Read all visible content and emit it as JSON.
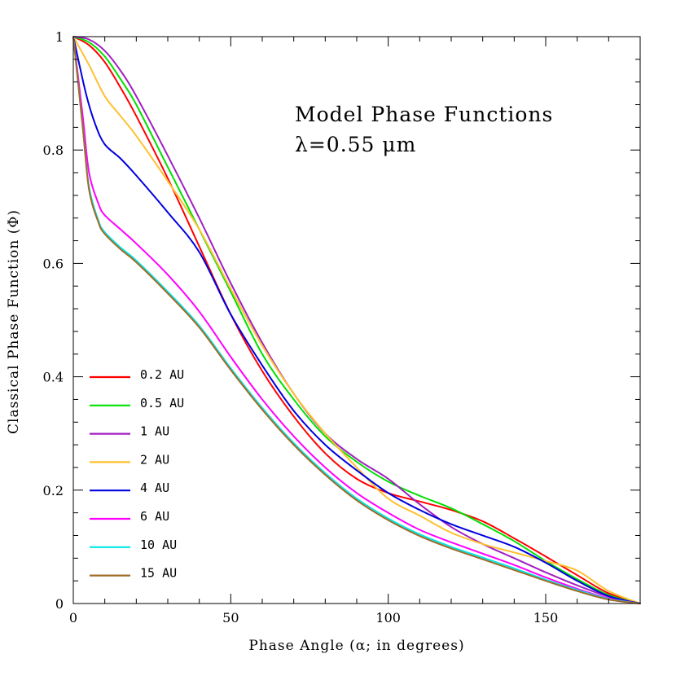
{
  "chart_data": {
    "type": "line",
    "title_lines": [
      "Model Phase Functions",
      "λ=0.55 μm"
    ],
    "xlabel": "Phase Angle (α; in degrees)",
    "ylabel": "Classical Phase Function (Φ)",
    "xlim": [
      0,
      180
    ],
    "ylim": [
      0,
      1
    ],
    "xticks": [
      0,
      50,
      100,
      150
    ],
    "xtick_labels": [
      "0",
      "50",
      "100",
      "150"
    ],
    "yticks": [
      0,
      0.2,
      0.4,
      0.6,
      0.8,
      1
    ],
    "ytick_labels": [
      "0",
      "0.2",
      "0.4",
      "0.6",
      "0.8",
      "1"
    ],
    "grid": false,
    "legend_position": "bottom-left",
    "series": [
      {
        "name": "0.2 AU",
        "color": "#ff0000",
        "points": [
          [
            0,
            1
          ],
          [
            5,
            0.985
          ],
          [
            10,
            0.955
          ],
          [
            15,
            0.91
          ],
          [
            20,
            0.86
          ],
          [
            30,
            0.75
          ],
          [
            40,
            0.63
          ],
          [
            50,
            0.51
          ],
          [
            60,
            0.41
          ],
          [
            70,
            0.33
          ],
          [
            80,
            0.265
          ],
          [
            90,
            0.22
          ],
          [
            100,
            0.195
          ],
          [
            110,
            0.18
          ],
          [
            120,
            0.165
          ],
          [
            130,
            0.145
          ],
          [
            140,
            0.115
          ],
          [
            150,
            0.083
          ],
          [
            160,
            0.05
          ],
          [
            170,
            0.018
          ],
          [
            180,
            0
          ]
        ]
      },
      {
        "name": "0.5 AU",
        "color": "#00e000",
        "points": [
          [
            0,
            1
          ],
          [
            5,
            0.99
          ],
          [
            10,
            0.965
          ],
          [
            15,
            0.925
          ],
          [
            20,
            0.88
          ],
          [
            30,
            0.77
          ],
          [
            40,
            0.66
          ],
          [
            50,
            0.55
          ],
          [
            60,
            0.44
          ],
          [
            70,
            0.36
          ],
          [
            80,
            0.295
          ],
          [
            90,
            0.25
          ],
          [
            100,
            0.215
          ],
          [
            110,
            0.19
          ],
          [
            120,
            0.168
          ],
          [
            130,
            0.14
          ],
          [
            140,
            0.11
          ],
          [
            150,
            0.075
          ],
          [
            160,
            0.043
          ],
          [
            170,
            0.015
          ],
          [
            180,
            0
          ]
        ]
      },
      {
        "name": "1 AU",
        "color": "#a020c0",
        "points": [
          [
            0,
            1
          ],
          [
            5,
            0.995
          ],
          [
            10,
            0.975
          ],
          [
            15,
            0.94
          ],
          [
            20,
            0.895
          ],
          [
            30,
            0.79
          ],
          [
            40,
            0.68
          ],
          [
            50,
            0.565
          ],
          [
            60,
            0.46
          ],
          [
            70,
            0.37
          ],
          [
            80,
            0.3
          ],
          [
            90,
            0.255
          ],
          [
            100,
            0.22
          ],
          [
            110,
            0.175
          ],
          [
            120,
            0.135
          ],
          [
            130,
            0.105
          ],
          [
            140,
            0.08
          ],
          [
            150,
            0.055
          ],
          [
            160,
            0.032
          ],
          [
            170,
            0.012
          ],
          [
            180,
            0
          ]
        ]
      },
      {
        "name": "2 AU",
        "color": "#ffc030",
        "points": [
          [
            0,
            1
          ],
          [
            5,
            0.95
          ],
          [
            10,
            0.895
          ],
          [
            15,
            0.86
          ],
          [
            20,
            0.825
          ],
          [
            30,
            0.745
          ],
          [
            40,
            0.66
          ],
          [
            50,
            0.555
          ],
          [
            60,
            0.455
          ],
          [
            70,
            0.37
          ],
          [
            80,
            0.3
          ],
          [
            90,
            0.24
          ],
          [
            100,
            0.185
          ],
          [
            110,
            0.155
          ],
          [
            120,
            0.125
          ],
          [
            130,
            0.105
          ],
          [
            140,
            0.09
          ],
          [
            150,
            0.075
          ],
          [
            160,
            0.058
          ],
          [
            170,
            0.022
          ],
          [
            180,
            0
          ]
        ]
      },
      {
        "name": "4 AU",
        "color": "#0000e0",
        "points": [
          [
            0,
            1
          ],
          [
            4,
            0.9
          ],
          [
            7,
            0.845
          ],
          [
            10,
            0.81
          ],
          [
            15,
            0.785
          ],
          [
            20,
            0.755
          ],
          [
            30,
            0.69
          ],
          [
            40,
            0.62
          ],
          [
            50,
            0.51
          ],
          [
            60,
            0.42
          ],
          [
            70,
            0.34
          ],
          [
            80,
            0.28
          ],
          [
            90,
            0.235
          ],
          [
            100,
            0.195
          ],
          [
            110,
            0.165
          ],
          [
            120,
            0.14
          ],
          [
            130,
            0.12
          ],
          [
            140,
            0.1
          ],
          [
            150,
            0.072
          ],
          [
            160,
            0.04
          ],
          [
            170,
            0.013
          ],
          [
            180,
            0
          ]
        ]
      },
      {
        "name": "6 AU",
        "color": "#ff00ff",
        "points": [
          [
            0,
            1
          ],
          [
            3,
            0.86
          ],
          [
            5,
            0.76
          ],
          [
            8,
            0.705
          ],
          [
            10,
            0.685
          ],
          [
            15,
            0.66
          ],
          [
            20,
            0.635
          ],
          [
            30,
            0.58
          ],
          [
            40,
            0.515
          ],
          [
            50,
            0.435
          ],
          [
            60,
            0.36
          ],
          [
            70,
            0.295
          ],
          [
            80,
            0.24
          ],
          [
            90,
            0.195
          ],
          [
            100,
            0.16
          ],
          [
            110,
            0.13
          ],
          [
            120,
            0.108
          ],
          [
            130,
            0.088
          ],
          [
            140,
            0.068
          ],
          [
            150,
            0.046
          ],
          [
            160,
            0.026
          ],
          [
            170,
            0.009
          ],
          [
            180,
            0
          ]
        ]
      },
      {
        "name": "10 AU",
        "color": "#00e8e8",
        "points": [
          [
            0,
            1
          ],
          [
            3,
            0.84
          ],
          [
            5,
            0.735
          ],
          [
            8,
            0.675
          ],
          [
            10,
            0.655
          ],
          [
            15,
            0.628
          ],
          [
            20,
            0.605
          ],
          [
            30,
            0.55
          ],
          [
            40,
            0.49
          ],
          [
            50,
            0.415
          ],
          [
            60,
            0.345
          ],
          [
            70,
            0.283
          ],
          [
            80,
            0.23
          ],
          [
            90,
            0.185
          ],
          [
            100,
            0.15
          ],
          [
            110,
            0.122
          ],
          [
            120,
            0.1
          ],
          [
            130,
            0.081
          ],
          [
            140,
            0.062
          ],
          [
            150,
            0.042
          ],
          [
            160,
            0.024
          ],
          [
            170,
            0.008
          ],
          [
            180,
            0
          ]
        ]
      },
      {
        "name": "15 AU",
        "color": "#a06c28",
        "points": [
          [
            0,
            1
          ],
          [
            3,
            0.84
          ],
          [
            5,
            0.73
          ],
          [
            8,
            0.672
          ],
          [
            10,
            0.652
          ],
          [
            15,
            0.625
          ],
          [
            20,
            0.602
          ],
          [
            30,
            0.547
          ],
          [
            40,
            0.487
          ],
          [
            50,
            0.412
          ],
          [
            60,
            0.342
          ],
          [
            70,
            0.28
          ],
          [
            80,
            0.227
          ],
          [
            90,
            0.182
          ],
          [
            100,
            0.147
          ],
          [
            110,
            0.119
          ],
          [
            120,
            0.097
          ],
          [
            130,
            0.078
          ],
          [
            140,
            0.059
          ],
          [
            150,
            0.04
          ],
          [
            160,
            0.022
          ],
          [
            170,
            0.007
          ],
          [
            180,
            0
          ]
        ]
      }
    ]
  }
}
